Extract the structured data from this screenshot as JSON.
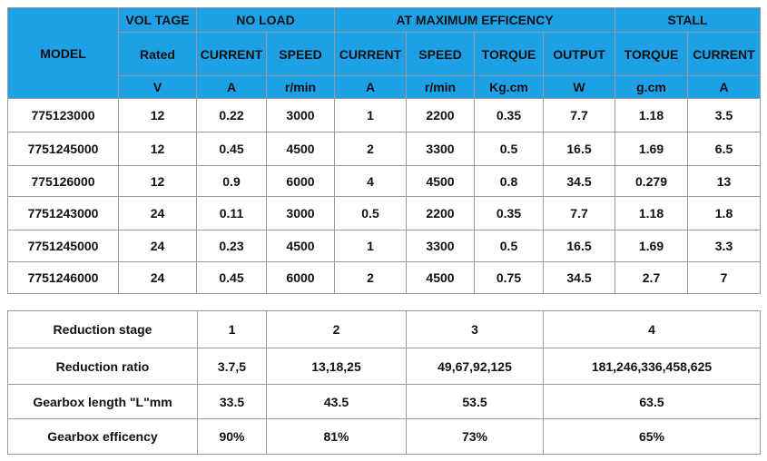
{
  "spec_table": {
    "header": {
      "model": "MODEL",
      "voltage": "VOL TAGE",
      "no_load": "NO LOAD",
      "max_efficiency": "AT MAXIMUM EFFICENCY",
      "stall": "STALL",
      "subheaders": [
        "Rated",
        "CURRENT",
        "SPEED",
        "CURRENT",
        "SPEED",
        "TORQUE",
        "OUTPUT",
        "TORQUE",
        "CURRENT"
      ],
      "units": [
        "V",
        "A",
        "r/min",
        "A",
        "r/min",
        "Kg.cm",
        "W",
        "g.cm",
        "A"
      ]
    },
    "rows": [
      [
        "775123000",
        "12",
        "0.22",
        "3000",
        "1",
        "2200",
        "0.35",
        "7.7",
        "1.18",
        "3.5"
      ],
      [
        "7751245000",
        "12",
        "0.45",
        "4500",
        "2",
        "3300",
        "0.5",
        "16.5",
        "1.69",
        "6.5"
      ],
      [
        "775126000",
        "12",
        "0.9",
        "6000",
        "4",
        "4500",
        "0.8",
        "34.5",
        "0.279",
        "13"
      ],
      [
        "7751243000",
        "24",
        "0.11",
        "3000",
        "0.5",
        "2200",
        "0.35",
        "7.7",
        "1.18",
        "1.8"
      ],
      [
        "7751245000",
        "24",
        "0.23",
        "4500",
        "1",
        "3300",
        "0.5",
        "16.5",
        "1.69",
        "3.3"
      ],
      [
        "7751246000",
        "24",
        "0.45",
        "6000",
        "2",
        "4500",
        "0.75",
        "34.5",
        "2.7",
        "7"
      ]
    ]
  },
  "gearbox_table": {
    "rows": [
      [
        "Reduction stage",
        "1",
        "2",
        "3",
        "4"
      ],
      [
        "Reduction ratio",
        "3.7,5",
        "13,18,25",
        "49,67,92,125",
        "181,246,336,458,625"
      ],
      [
        "Gearbox length \"L\"mm",
        "33.5",
        "43.5",
        "53.5",
        "63.5"
      ],
      [
        "Gearbox efficency",
        "90%",
        "81%",
        "73%",
        "65%"
      ]
    ]
  }
}
